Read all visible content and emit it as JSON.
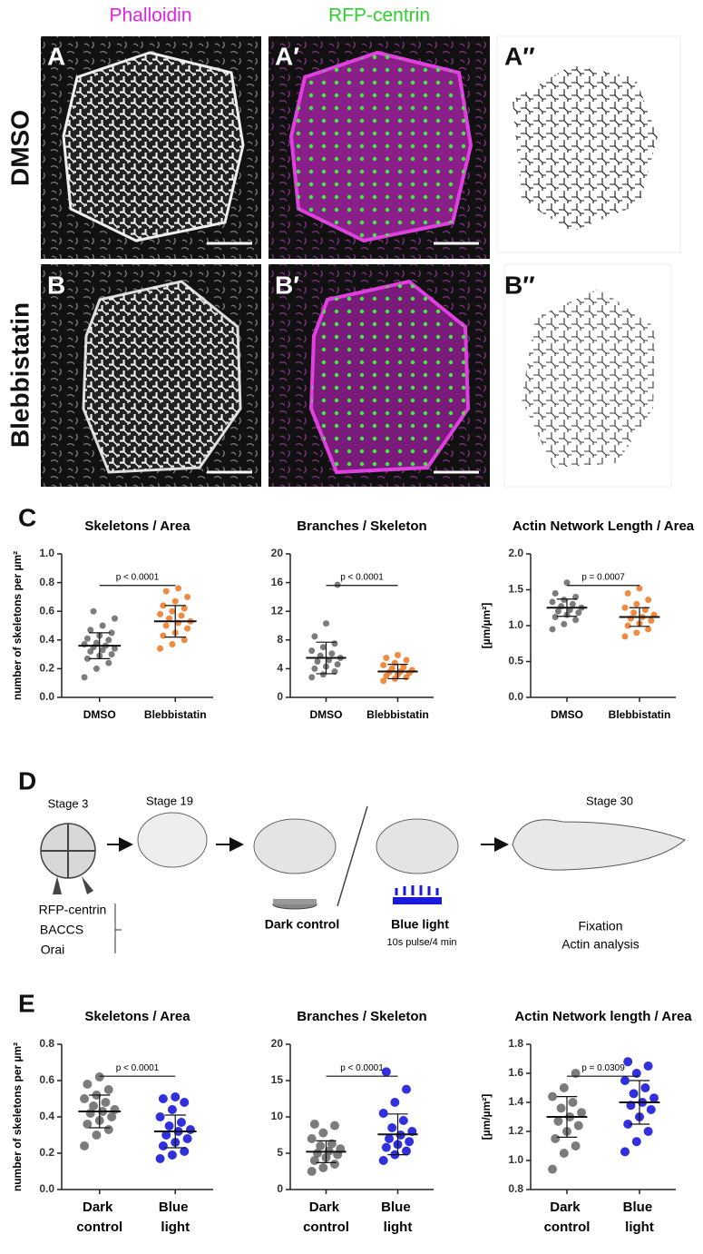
{
  "figure_labels": {
    "columns": [
      "Phalloidin",
      "RFP-centrin"
    ],
    "rows": [
      "DMSO",
      "Blebbistatin"
    ],
    "panels": [
      "A",
      "A′",
      "A″",
      "B",
      "B′",
      "B″",
      "C",
      "D",
      "E"
    ]
  },
  "chart_data": [
    {
      "type": "strip",
      "title": "Skeletons / Area",
      "ylabel": "number of skeletons per µm²",
      "categories": [
        "DMSO",
        "Blebbistatin"
      ],
      "annotation": "p < 0.0001",
      "ylim": [
        0,
        1
      ],
      "yticks": [
        {
          "value": 0,
          "label": "0.0"
        },
        0.2,
        0.4,
        0.6,
        0.8,
        {
          "value": 1,
          "label": "1.0"
        }
      ],
      "groups": [
        {
          "color": "#6e6e6e",
          "mean": 0.36,
          "sd": 0.09,
          "values": [
            0.14,
            0.2,
            0.24,
            0.27,
            0.29,
            0.3,
            0.32,
            0.33,
            0.34,
            0.35,
            0.36,
            0.37,
            0.38,
            0.4,
            0.41,
            0.43,
            0.45,
            0.47,
            0.5,
            0.55,
            0.6
          ]
        },
        {
          "color": "#f07d2c",
          "mean": 0.53,
          "sd": 0.11,
          "values": [
            0.34,
            0.37,
            0.4,
            0.43,
            0.45,
            0.48,
            0.5,
            0.52,
            0.53,
            0.55,
            0.57,
            0.58,
            0.6,
            0.62,
            0.64,
            0.67,
            0.7,
            0.74,
            0.76
          ]
        }
      ]
    },
    {
      "type": "strip",
      "title": "Branches / Skeleton",
      "categories": [
        "DMSO",
        "Blebbistatin"
      ],
      "annotation": "p < 0.0001",
      "ylim": [
        0,
        20
      ],
      "yticks": [
        0,
        4,
        8,
        12,
        16,
        20
      ],
      "groups": [
        {
          "color": "#6e6e6e",
          "mean": 5.5,
          "sd": 2.2,
          "values": [
            2.8,
            3.2,
            3.6,
            4,
            4.3,
            4.6,
            5,
            5.2,
            5.5,
            5.8,
            6.1,
            6.5,
            7,
            7.5,
            8.5,
            10.3,
            15.7
          ]
        },
        {
          "color": "#f07d2c",
          "mean": 3.6,
          "sd": 1,
          "values": [
            2.3,
            2.6,
            2.8,
            3,
            3.2,
            3.4,
            3.5,
            3.6,
            3.8,
            4,
            4.2,
            4.5,
            4.8,
            5.2,
            5.5,
            5.9
          ]
        }
      ]
    },
    {
      "type": "strip",
      "title": "Actin Network Length / Area",
      "ylabel": "[µm/µm²]",
      "categories": [
        "DMSO",
        "Blebbistatin"
      ],
      "annotation": "p = 0.0007",
      "ylim": [
        0,
        2
      ],
      "yticks": [
        {
          "value": 0,
          "label": "0.0"
        },
        0.5,
        {
          "value": 1,
          "label": "1.0"
        },
        1.5,
        {
          "value": 2,
          "label": "2.0"
        }
      ],
      "groups": [
        {
          "color": "#6e6e6e",
          "mean": 1.25,
          "sd": 0.12,
          "values": [
            0.95,
            1.02,
            1.08,
            1.12,
            1.15,
            1.18,
            1.2,
            1.22,
            1.25,
            1.27,
            1.3,
            1.33,
            1.36,
            1.4,
            1.45,
            1.6
          ]
        },
        {
          "color": "#f07d2c",
          "mean": 1.12,
          "sd": 0.13,
          "values": [
            0.85,
            0.9,
            0.95,
            1,
            1.03,
            1.07,
            1.1,
            1.12,
            1.15,
            1.18,
            1.22,
            1.25,
            1.3,
            1.36,
            1.45,
            1.52
          ]
        }
      ]
    },
    {
      "type": "strip",
      "title": "Skeletons / Area",
      "ylabel": "number of skeletons per µm²",
      "categories": [
        "Dark control",
        "Blue light"
      ],
      "annotation": "p < 0.0001",
      "ylim": [
        0,
        0.8
      ],
      "yticks": [
        {
          "value": 0,
          "label": "0.0"
        },
        0.2,
        0.4,
        0.6,
        0.8
      ],
      "groups": [
        {
          "color": "#6e6e6e",
          "mean": 0.43,
          "sd": 0.09,
          "values": [
            0.24,
            0.3,
            0.33,
            0.36,
            0.38,
            0.4,
            0.42,
            0.43,
            0.44,
            0.46,
            0.48,
            0.5,
            0.52,
            0.55,
            0.58,
            0.62
          ]
        },
        {
          "color": "#1a1adc",
          "mean": 0.32,
          "sd": 0.09,
          "values": [
            0.17,
            0.19,
            0.21,
            0.24,
            0.26,
            0.28,
            0.3,
            0.32,
            0.33,
            0.35,
            0.37,
            0.4,
            0.44,
            0.48,
            0.5,
            0.51
          ]
        }
      ]
    },
    {
      "type": "strip",
      "title": "Branches / Skeleton",
      "categories": [
        "Dark control",
        "Blue light"
      ],
      "annotation": "p < 0.0001",
      "ylim": [
        0,
        20
      ],
      "yticks": [
        0,
        5,
        10,
        15,
        20
      ],
      "groups": [
        {
          "color": "#6e6e6e",
          "mean": 5.2,
          "sd": 1.5,
          "values": [
            2.5,
            3,
            3.5,
            4,
            4.4,
            4.8,
            5,
            5.3,
            5.6,
            6,
            6.3,
            7,
            7.8,
            8.8,
            9
          ]
        },
        {
          "color": "#1a1adc",
          "mean": 7.6,
          "sd": 2.8,
          "values": [
            4,
            4.8,
            5.3,
            5.8,
            6.2,
            6.6,
            7,
            7.5,
            8,
            8.5,
            9.5,
            10.5,
            12,
            13.8,
            16.2
          ]
        }
      ]
    },
    {
      "type": "strip",
      "title": "Actin Network length / Area",
      "ylabel": "[µm/µm²]",
      "categories": [
        "Dark control",
        "Blue light"
      ],
      "annotation": "p = 0.0309",
      "ylim": [
        0.8,
        1.8
      ],
      "yticks": [
        0.8,
        {
          "value": 1,
          "label": "1.0"
        },
        1.2,
        1.4,
        1.6,
        1.8
      ],
      "groups": [
        {
          "color": "#6e6e6e",
          "mean": 1.3,
          "sd": 0.14,
          "values": [
            0.94,
            1.05,
            1.1,
            1.15,
            1.2,
            1.24,
            1.27,
            1.3,
            1.33,
            1.36,
            1.4,
            1.44,
            1.5,
            1.6
          ]
        },
        {
          "color": "#1a1adc",
          "mean": 1.4,
          "sd": 0.15,
          "values": [
            1.06,
            1.13,
            1.2,
            1.25,
            1.3,
            1.35,
            1.38,
            1.4,
            1.43,
            1.46,
            1.5,
            1.55,
            1.6,
            1.65,
            1.68
          ]
        }
      ]
    }
  ],
  "diagram": {
    "stages": [
      "Stage 3",
      "Stage 19",
      "Stage 30"
    ],
    "constructs": [
      "RFP-centrin",
      "BACCS",
      "Orai"
    ],
    "conditions": [
      {
        "label": "Dark control"
      },
      {
        "label": "Blue light",
        "note": "10s pulse/4 min"
      }
    ],
    "outcome": [
      "Fixation",
      "Actin analysis"
    ]
  }
}
